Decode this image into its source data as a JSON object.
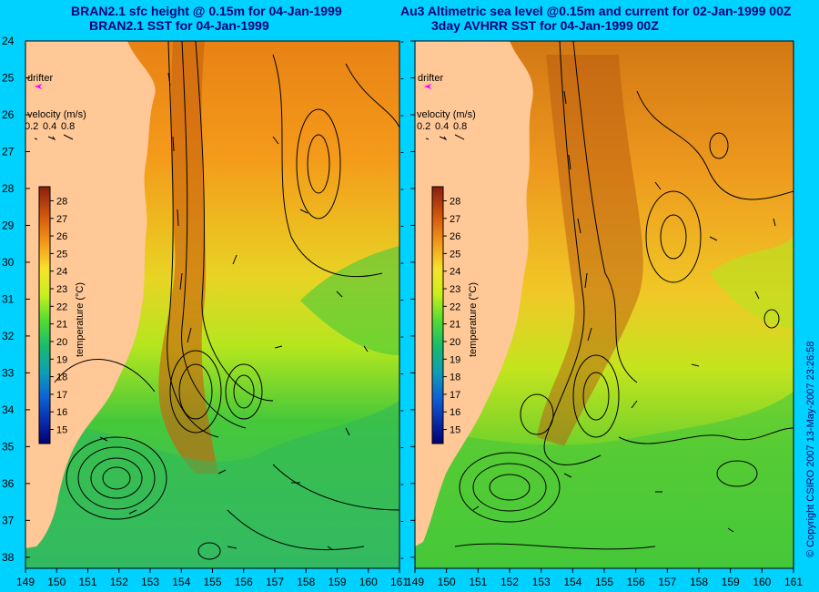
{
  "titles": {
    "left_line1": "BRAN2.1 sfc height @ 0.15m for 04-Jan-1999",
    "left_line2": "BRAN2.1 SST for 04-Jan-1999",
    "right_line1": "Au3 Altimetric sea level  @0.15m and current for 02-Jan-1999 00Z",
    "right_line2": "3day AVHRR SST for 04-Jan-1999 00Z"
  },
  "axes": {
    "lat_ticks": [
      "24",
      "25",
      "26",
      "27",
      "28",
      "29",
      "30",
      "31",
      "32",
      "33",
      "34",
      "35",
      "36",
      "37",
      "38"
    ],
    "lon_ticks": [
      "149",
      "150",
      "151",
      "152",
      "153",
      "154",
      "155",
      "156",
      "157",
      "158",
      "159",
      "160",
      "161"
    ],
    "lat_range": [
      24,
      38.3
    ],
    "lon_range": [
      149,
      161
    ]
  },
  "legend": {
    "drifter_label": "drifter",
    "velocity_title": "velocity (m/s)",
    "velocity_values": [
      "0.2",
      "0.4",
      "0.8"
    ],
    "colorbar_ticks": [
      "28",
      "27",
      "26",
      "25",
      "24",
      "23",
      "22",
      "21",
      "20",
      "19",
      "18",
      "17",
      "16",
      "15"
    ],
    "colorbar_label": "temperature (°C)",
    "colorbar_range": [
      14.2,
      28.8
    ]
  },
  "colors": {
    "background": "#00d2ff",
    "land": "#ffc896",
    "title_text": "#00007a",
    "drifter": "#ff00ff",
    "contour": "#000000"
  },
  "copyright": "© Copyright CSIRO 2007   13-May-2007 23:26:58"
}
